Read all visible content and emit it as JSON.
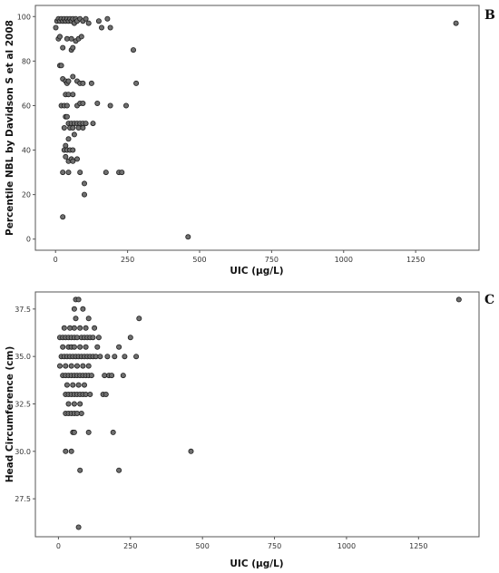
{
  "chart_data": [
    {
      "type": "scatter",
      "panel_label": "B",
      "xlabel": "UIC (μg/L)",
      "ylabel": "Percentile NBL by Davidson S et al 2008",
      "xlim": [
        -70,
        1470
      ],
      "ylim": [
        -5,
        105
      ],
      "xticks": [
        0,
        250,
        500,
        750,
        1000,
        1250
      ],
      "yticks": [
        0,
        20,
        40,
        60,
        80,
        100
      ],
      "grid": false,
      "legend": "none",
      "points": [
        [
          1,
          95
        ],
        [
          5,
          98
        ],
        [
          10,
          99
        ],
        [
          15,
          98
        ],
        [
          20,
          99
        ],
        [
          25,
          98
        ],
        [
          30,
          99
        ],
        [
          35,
          98
        ],
        [
          40,
          99
        ],
        [
          45,
          98
        ],
        [
          50,
          99
        ],
        [
          55,
          98
        ],
        [
          60,
          99
        ],
        [
          65,
          97
        ],
        [
          70,
          99
        ],
        [
          75,
          98
        ],
        [
          85,
          99
        ],
        [
          95,
          98
        ],
        [
          105,
          99
        ],
        [
          115,
          97
        ],
        [
          150,
          98
        ],
        [
          160,
          95
        ],
        [
          180,
          99
        ],
        [
          10,
          90
        ],
        [
          15,
          91
        ],
        [
          25,
          86
        ],
        [
          40,
          90
        ],
        [
          55,
          90
        ],
        [
          70,
          89
        ],
        [
          80,
          90
        ],
        [
          90,
          91
        ],
        [
          55,
          85
        ],
        [
          60,
          86
        ],
        [
          15,
          78
        ],
        [
          20,
          78
        ],
        [
          25,
          72
        ],
        [
          35,
          71
        ],
        [
          40,
          70
        ],
        [
          45,
          71
        ],
        [
          60,
          73
        ],
        [
          75,
          71
        ],
        [
          85,
          70
        ],
        [
          95,
          70
        ],
        [
          125,
          70
        ],
        [
          35,
          65
        ],
        [
          45,
          65
        ],
        [
          60,
          65
        ],
        [
          20,
          60
        ],
        [
          30,
          60
        ],
        [
          40,
          60
        ],
        [
          75,
          60
        ],
        [
          85,
          61
        ],
        [
          95,
          61
        ],
        [
          145,
          61
        ],
        [
          190,
          60
        ],
        [
          245,
          60
        ],
        [
          35,
          55
        ],
        [
          40,
          55
        ],
        [
          45,
          52
        ],
        [
          55,
          52
        ],
        [
          65,
          52
        ],
        [
          75,
          52
        ],
        [
          85,
          52
        ],
        [
          95,
          52
        ],
        [
          105,
          52
        ],
        [
          130,
          52
        ],
        [
          30,
          50
        ],
        [
          50,
          50
        ],
        [
          60,
          50
        ],
        [
          80,
          50
        ],
        [
          95,
          50
        ],
        [
          65,
          47
        ],
        [
          45,
          45
        ],
        [
          35,
          42
        ],
        [
          30,
          40
        ],
        [
          40,
          40
        ],
        [
          50,
          40
        ],
        [
          60,
          40
        ],
        [
          35,
          37
        ],
        [
          45,
          35
        ],
        [
          55,
          36
        ],
        [
          60,
          35
        ],
        [
          75,
          36
        ],
        [
          25,
          30
        ],
        [
          45,
          30
        ],
        [
          85,
          30
        ],
        [
          175,
          30
        ],
        [
          220,
          30
        ],
        [
          230,
          30
        ],
        [
          100,
          25
        ],
        [
          100,
          20
        ],
        [
          25,
          10
        ],
        [
          460,
          1
        ],
        [
          190,
          95
        ],
        [
          270,
          85
        ],
        [
          280,
          70
        ],
        [
          1390,
          97
        ]
      ]
    },
    {
      "type": "scatter",
      "panel_label": "C",
      "xlabel": "UIC (μg/L)",
      "ylabel": "Head Circumference (cm)",
      "xlim": [
        -80,
        1460
      ],
      "ylim": [
        25.5,
        38.4
      ],
      "xticks": [
        0,
        250,
        500,
        750,
        1000,
        1250
      ],
      "yticks": [
        27.5,
        30.0,
        32.5,
        35.0,
        37.5
      ],
      "grid": false,
      "legend": "none",
      "points": [
        [
          60,
          38
        ],
        [
          70,
          38
        ],
        [
          1390,
          38
        ],
        [
          55,
          37.5
        ],
        [
          85,
          37.5
        ],
        [
          60,
          37
        ],
        [
          105,
          37
        ],
        [
          280,
          37
        ],
        [
          20,
          36.5
        ],
        [
          40,
          36.5
        ],
        [
          55,
          36.5
        ],
        [
          75,
          36.5
        ],
        [
          95,
          36.5
        ],
        [
          125,
          36.5
        ],
        [
          5,
          36
        ],
        [
          15,
          36
        ],
        [
          25,
          36
        ],
        [
          35,
          36
        ],
        [
          45,
          36
        ],
        [
          55,
          36
        ],
        [
          65,
          36
        ],
        [
          80,
          36
        ],
        [
          90,
          36
        ],
        [
          100,
          36
        ],
        [
          110,
          36
        ],
        [
          120,
          36
        ],
        [
          140,
          36
        ],
        [
          250,
          36
        ],
        [
          15,
          35.5
        ],
        [
          35,
          35.5
        ],
        [
          45,
          35.5
        ],
        [
          55,
          35.5
        ],
        [
          75,
          35.5
        ],
        [
          95,
          35.5
        ],
        [
          135,
          35.5
        ],
        [
          210,
          35.5
        ],
        [
          10,
          35
        ],
        [
          20,
          35
        ],
        [
          30,
          35
        ],
        [
          40,
          35
        ],
        [
          50,
          35
        ],
        [
          60,
          35
        ],
        [
          70,
          35
        ],
        [
          80,
          35
        ],
        [
          90,
          35
        ],
        [
          100,
          35
        ],
        [
          110,
          35
        ],
        [
          120,
          35
        ],
        [
          130,
          35
        ],
        [
          145,
          35
        ],
        [
          170,
          35
        ],
        [
          195,
          35
        ],
        [
          230,
          35
        ],
        [
          270,
          35
        ],
        [
          5,
          34.5
        ],
        [
          25,
          34.5
        ],
        [
          45,
          34.5
        ],
        [
          65,
          34.5
        ],
        [
          85,
          34.5
        ],
        [
          105,
          34.5
        ],
        [
          15,
          34
        ],
        [
          25,
          34
        ],
        [
          35,
          34
        ],
        [
          45,
          34
        ],
        [
          55,
          34
        ],
        [
          65,
          34
        ],
        [
          75,
          34
        ],
        [
          85,
          34
        ],
        [
          95,
          34
        ],
        [
          105,
          34
        ],
        [
          115,
          34
        ],
        [
          160,
          34
        ],
        [
          175,
          34
        ],
        [
          185,
          34
        ],
        [
          225,
          34
        ],
        [
          30,
          33.5
        ],
        [
          50,
          33.5
        ],
        [
          70,
          33.5
        ],
        [
          90,
          33.5
        ],
        [
          25,
          33
        ],
        [
          35,
          33
        ],
        [
          45,
          33
        ],
        [
          55,
          33
        ],
        [
          65,
          33
        ],
        [
          75,
          33
        ],
        [
          85,
          33
        ],
        [
          95,
          33
        ],
        [
          110,
          33
        ],
        [
          155,
          33
        ],
        [
          165,
          33
        ],
        [
          35,
          32.5
        ],
        [
          55,
          32.5
        ],
        [
          75,
          32.5
        ],
        [
          25,
          32
        ],
        [
          35,
          32
        ],
        [
          45,
          32
        ],
        [
          55,
          32
        ],
        [
          65,
          32
        ],
        [
          80,
          32
        ],
        [
          50,
          31
        ],
        [
          55,
          31
        ],
        [
          105,
          31
        ],
        [
          190,
          31
        ],
        [
          25,
          30
        ],
        [
          45,
          30
        ],
        [
          460,
          30
        ],
        [
          75,
          29
        ],
        [
          210,
          29
        ],
        [
          70,
          26
        ]
      ]
    }
  ]
}
